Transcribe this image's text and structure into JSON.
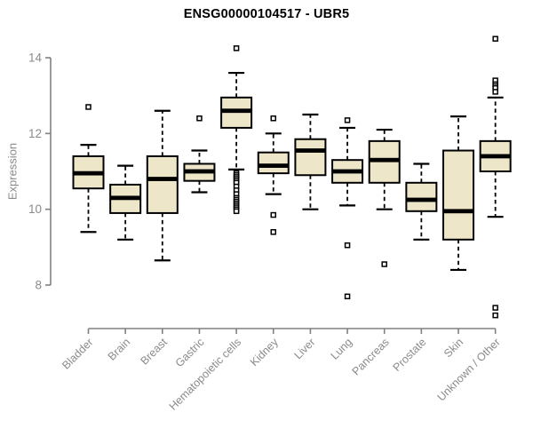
{
  "chart_data": {
    "type": "boxplot",
    "title": "ENSG00000104517 - UBR5",
    "xlabel": "",
    "ylabel": "Expression",
    "y_ticks": [
      8,
      10,
      12,
      14
    ],
    "ylim": [
      8,
      14
    ],
    "grid": false,
    "legend": "none",
    "categories": [
      "Bladder",
      "Brain",
      "Breast",
      "Gastric",
      "Hematopoietic cells",
      "Kidney",
      "Liver",
      "Lung",
      "Pancreas",
      "Prostate",
      "Skin",
      "Unknown / Other"
    ],
    "boxes": [
      {
        "label": "Bladder",
        "whisker_low": 9.4,
        "q1": 10.55,
        "median": 10.95,
        "q3": 11.4,
        "whisker_high": 11.7,
        "outliers": [
          12.7
        ]
      },
      {
        "label": "Brain",
        "whisker_low": 9.2,
        "q1": 9.9,
        "median": 10.3,
        "q3": 10.65,
        "whisker_high": 11.15,
        "outliers": []
      },
      {
        "label": "Breast",
        "whisker_low": 8.65,
        "q1": 9.9,
        "median": 10.8,
        "q3": 11.4,
        "whisker_high": 12.6,
        "outliers": []
      },
      {
        "label": "Gastric",
        "whisker_low": 10.45,
        "q1": 10.75,
        "median": 11.0,
        "q3": 11.2,
        "whisker_high": 11.55,
        "outliers": [
          12.4
        ]
      },
      {
        "label": "Hematopoietic cells",
        "whisker_low": 11.05,
        "q1": 12.15,
        "median": 12.6,
        "q3": 12.95,
        "whisker_high": 13.6,
        "outliers": [
          14.25,
          10.95,
          10.9,
          10.85,
          10.8,
          10.75,
          10.7,
          10.6,
          10.5,
          10.4,
          10.3,
          10.25,
          10.2,
          10.15,
          10.1,
          10.05,
          10.0,
          9.95
        ]
      },
      {
        "label": "Kidney",
        "whisker_low": 10.4,
        "q1": 10.95,
        "median": 11.15,
        "q3": 11.5,
        "whisker_high": 12.0,
        "outliers": [
          12.4,
          9.85,
          9.4
        ]
      },
      {
        "label": "Liver",
        "whisker_low": 10.0,
        "q1": 10.9,
        "median": 11.55,
        "q3": 11.85,
        "whisker_high": 12.5,
        "outliers": []
      },
      {
        "label": "Lung",
        "whisker_low": 10.1,
        "q1": 10.7,
        "median": 11.0,
        "q3": 11.3,
        "whisker_high": 12.15,
        "outliers": [
          12.35,
          9.05,
          7.7
        ]
      },
      {
        "label": "Pancreas",
        "whisker_low": 10.0,
        "q1": 10.7,
        "median": 11.3,
        "q3": 11.8,
        "whisker_high": 12.1,
        "outliers": [
          8.55
        ]
      },
      {
        "label": "Prostate",
        "whisker_low": 9.2,
        "q1": 9.95,
        "median": 10.25,
        "q3": 10.7,
        "whisker_high": 11.2,
        "outliers": []
      },
      {
        "label": "Skin",
        "whisker_low": 8.4,
        "q1": 9.2,
        "median": 9.95,
        "q3": 11.55,
        "whisker_high": 12.45,
        "outliers": []
      },
      {
        "label": "Unknown / Other",
        "whisker_low": 9.8,
        "q1": 11.0,
        "median": 11.4,
        "q3": 11.8,
        "whisker_high": 12.95,
        "outliers": [
          14.5,
          13.4,
          13.3,
          13.25,
          13.2,
          13.1,
          7.4,
          7.2
        ]
      }
    ],
    "colors": {
      "box_fill": "#ede6c8",
      "box_border": "#000000",
      "median": "#000000",
      "whisker": "#000000",
      "outlier_fill": "#ffffff",
      "outlier_border": "#000000",
      "axis_line": "#808080",
      "axis_text": "#8a8a8a",
      "title_text": "#000000",
      "background": "#ffffff"
    }
  }
}
